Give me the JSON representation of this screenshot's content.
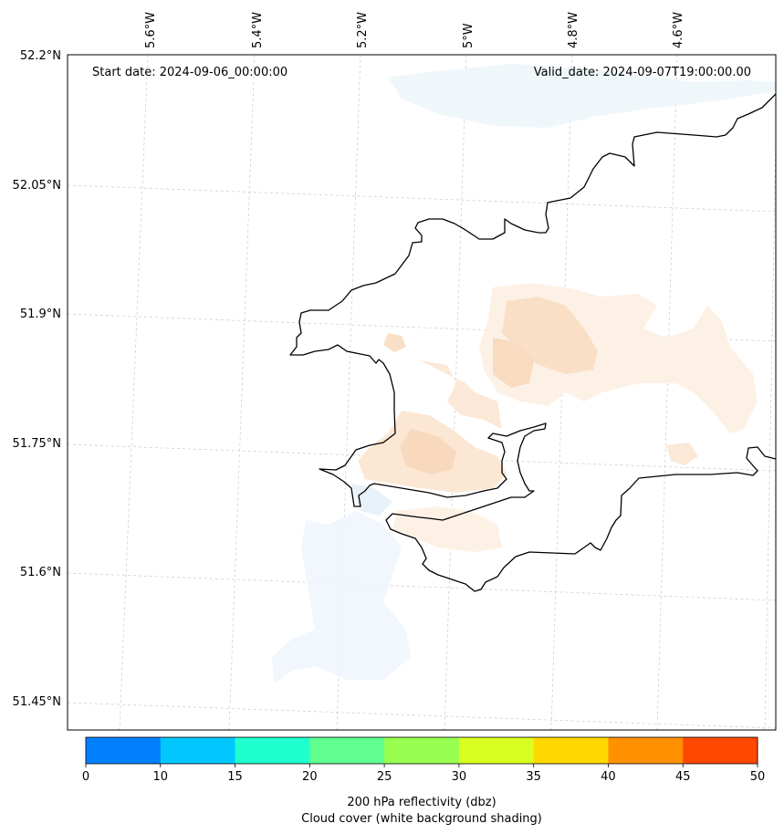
{
  "header": {
    "start_date": "Start date: 2024-09-06_00:00:00",
    "valid_date": "Valid_date: 2024-09-07T19:00:00.00"
  },
  "lon_labels": [
    "5.6°W",
    "5.4°W",
    "5.2°W",
    "5°W",
    "4.8°W",
    "4.6°W"
  ],
  "lat_labels": [
    "52.2°N",
    "52.05°N",
    "51.9°N",
    "51.75°N",
    "51.6°N",
    "51.45°N"
  ],
  "colorbar": {
    "colors": [
      "#0080ff",
      "#00c8ff",
      "#20ffd0",
      "#60ff90",
      "#98ff50",
      "#d8ff20",
      "#ffd800",
      "#ff9000",
      "#ff4800"
    ],
    "ticks": [
      "0",
      "10",
      "15",
      "20",
      "25",
      "30",
      "35",
      "40",
      "45",
      "50"
    ],
    "label_line1": "200 hPa reflectivity (dbz)",
    "label_line2": "Cloud cover (white background shading)"
  }
}
